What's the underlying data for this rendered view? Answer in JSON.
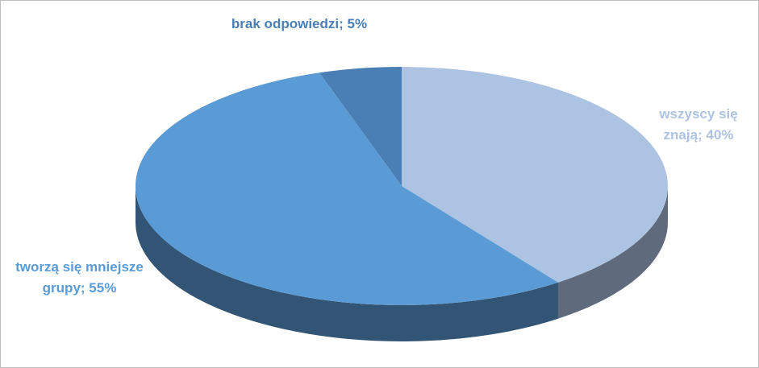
{
  "chart_data": {
    "type": "pie3d",
    "values": [
      40,
      55,
      5
    ],
    "value_labels": [
      "wszyscy się znają; 40%",
      "tworzą się mniejsze grupy; 55%",
      "brak odpowiedzi; 5%"
    ],
    "colors": [
      "#adc3e2",
      "#5b9bd5",
      "#4a7fb5"
    ]
  }
}
